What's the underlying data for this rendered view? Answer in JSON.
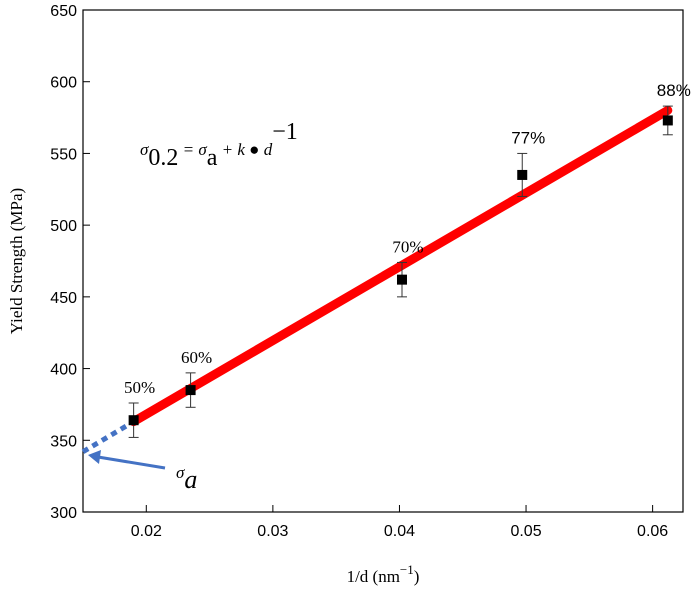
{
  "chart_data": {
    "type": "scatter",
    "x_label": [
      "1/d (nm",
      "−1",
      ")"
    ],
    "y_label": "Yield Strength (MPa)",
    "equation": [
      "σ",
      "0.2",
      " = σ",
      "a",
      " + k ● d",
      "−1"
    ],
    "intercept_label": [
      "σ",
      "a"
    ],
    "x": [
      0.019,
      0.0235,
      0.0402,
      0.0497,
      0.0612
    ],
    "values": [
      364,
      385,
      462,
      535,
      573
    ],
    "errors": [
      12,
      12,
      12,
      15,
      10
    ],
    "point_labels": [
      "50%",
      "60%",
      "70%",
      "77%",
      "88%"
    ],
    "color": "#000000",
    "fit": {
      "x": [
        0.019,
        0.0612
      ],
      "values": [
        363,
        580
      ],
      "color": "#ff0000"
    },
    "extrapolation": {
      "x": [
        0.015,
        0.019
      ],
      "values": [
        342,
        363
      ],
      "color": "#4472c4"
    },
    "xlim": [
      0.015,
      0.0624
    ],
    "ylim": [
      300,
      650
    ],
    "xticks": [
      0.02,
      0.03,
      0.04,
      0.05,
      0.06
    ],
    "yticks": [
      300,
      350,
      400,
      450,
      500,
      550,
      600,
      650
    ]
  }
}
